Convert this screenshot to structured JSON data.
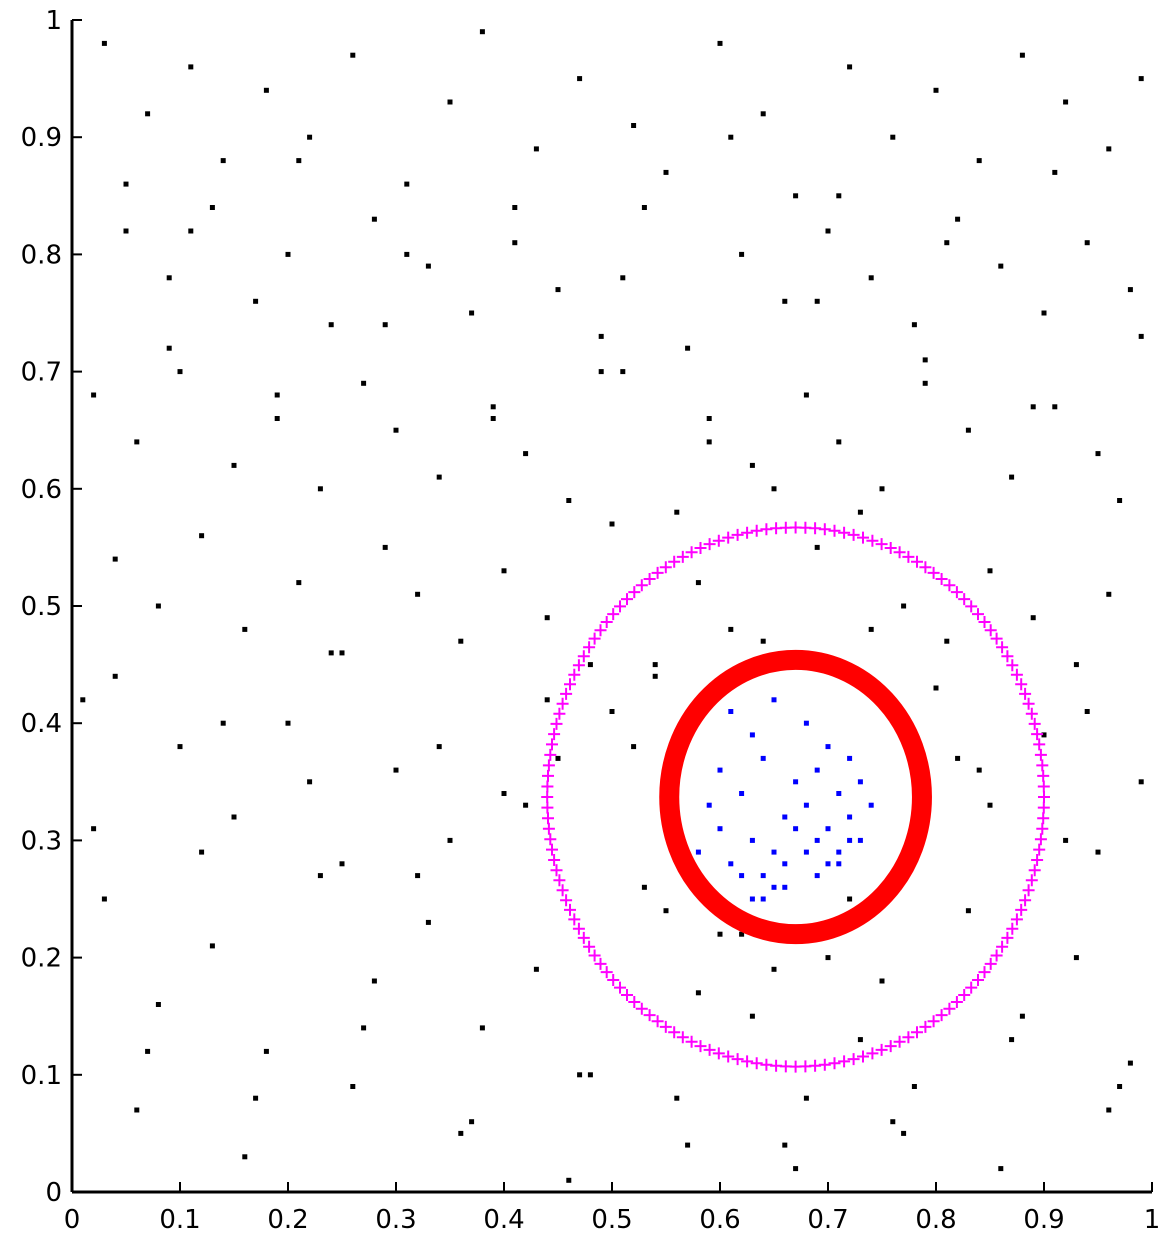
{
  "chart_data": {
    "type": "scatter",
    "title": "",
    "xlabel": "",
    "ylabel": "",
    "xlim": [
      0,
      1
    ],
    "ylim": [
      0,
      1
    ],
    "grid": false,
    "legend": "none",
    "xticks": [
      "0",
      "0.1",
      "0.2",
      "0.3",
      "0.4",
      "0.5",
      "0.6",
      "0.7",
      "0.8",
      "0.9",
      "1"
    ],
    "yticks": [
      "0",
      "0.1",
      "0.2",
      "0.3",
      "0.4",
      "0.5",
      "0.6",
      "0.7",
      "0.8",
      "0.9",
      "1"
    ],
    "colors": {
      "background_points": "#000000",
      "inner_points": "#0000ff",
      "inner_circle": "#ff0000",
      "outer_circle": "#ff00ff",
      "axis": "#000000"
    },
    "series": [
      {
        "marker": "dot",
        "color": "#000000",
        "x": [
          0.03,
          0.07,
          0.11,
          0.14,
          0.18,
          0.22,
          0.26,
          0.31,
          0.35,
          0.38,
          0.43,
          0.47,
          0.52,
          0.55,
          0.6,
          0.64,
          0.67,
          0.72,
          0.76,
          0.8,
          0.84,
          0.88,
          0.92,
          0.96,
          0.99,
          0.05,
          0.09,
          0.13,
          0.17,
          0.2,
          0.24,
          0.28,
          0.33,
          0.37,
          0.41,
          0.45,
          0.49,
          0.53,
          0.57,
          0.62,
          0.66,
          0.7,
          0.74,
          0.78,
          0.82,
          0.86,
          0.9,
          0.94,
          0.98,
          0.02,
          0.06,
          0.1,
          0.15,
          0.19,
          0.23,
          0.27,
          0.3,
          0.34,
          0.39,
          0.42,
          0.46,
          0.51,
          0.56,
          0.59,
          0.63,
          0.68,
          0.71,
          0.75,
          0.79,
          0.83,
          0.87,
          0.91,
          0.95,
          0.97,
          0.04,
          0.08,
          0.12,
          0.16,
          0.21,
          0.25,
          0.29,
          0.32,
          0.36,
          0.4,
          0.44,
          0.48,
          0.5,
          0.54,
          0.58,
          0.61,
          0.65,
          0.69,
          0.73,
          0.77,
          0.81,
          0.85,
          0.89,
          0.93,
          0.96,
          0.01,
          0.1,
          0.2,
          0.3,
          0.4,
          0.5,
          0.6,
          0.7,
          0.8,
          0.9,
          0.99,
          0.15,
          0.25,
          0.35,
          0.45,
          0.55,
          0.65,
          0.75,
          0.85,
          0.95,
          0.03,
          0.13,
          0.23,
          0.33,
          0.43,
          0.53,
          0.63,
          0.73,
          0.83,
          0.93,
          0.08,
          0.18,
          0.28,
          0.38,
          0.48,
          0.58,
          0.68,
          0.78,
          0.88,
          0.98,
          0.06,
          0.16,
          0.26,
          0.36,
          0.46,
          0.56,
          0.66,
          0.76,
          0.86,
          0.96,
          0.02,
          0.12,
          0.22,
          0.32,
          0.42,
          0.52,
          0.62,
          0.72,
          0.82,
          0.92,
          0.07,
          0.17,
          0.27,
          0.37,
          0.47,
          0.57,
          0.67,
          0.77,
          0.87,
          0.97,
          0.04,
          0.14,
          0.24,
          0.34,
          0.44,
          0.54,
          0.64,
          0.74,
          0.84,
          0.94,
          0.09,
          0.19,
          0.29,
          0.39,
          0.49,
          0.59,
          0.69,
          0.79,
          0.89,
          0.99,
          0.05,
          0.11,
          0.21,
          0.31,
          0.41,
          0.51,
          0.61,
          0.71,
          0.81,
          0.91
        ],
        "y": [
          0.98,
          0.92,
          0.96,
          0.88,
          0.94,
          0.9,
          0.97,
          0.86,
          0.93,
          0.99,
          0.89,
          0.95,
          0.91,
          0.87,
          0.98,
          0.92,
          0.85,
          0.96,
          0.9,
          0.94,
          0.88,
          0.97,
          0.93,
          0.89,
          0.95,
          0.82,
          0.78,
          0.84,
          0.76,
          0.8,
          0.74,
          0.83,
          0.79,
          0.75,
          0.81,
          0.77,
          0.73,
          0.84,
          0.72,
          0.8,
          0.76,
          0.82,
          0.78,
          0.74,
          0.83,
          0.79,
          0.75,
          0.81,
          0.77,
          0.68,
          0.64,
          0.7,
          0.62,
          0.66,
          0.6,
          0.69,
          0.65,
          0.61,
          0.67,
          0.63,
          0.59,
          0.7,
          0.58,
          0.66,
          0.62,
          0.68,
          0.64,
          0.6,
          0.69,
          0.65,
          0.61,
          0.67,
          0.63,
          0.59,
          0.54,
          0.5,
          0.56,
          0.48,
          0.52,
          0.46,
          0.55,
          0.51,
          0.47,
          0.53,
          0.49,
          0.45,
          0.57,
          0.44,
          0.52,
          0.48,
          0.6,
          0.55,
          0.58,
          0.5,
          0.47,
          0.53,
          0.49,
          0.45,
          0.51,
          0.42,
          0.38,
          0.4,
          0.36,
          0.34,
          0.41,
          0.22,
          0.2,
          0.43,
          0.39,
          0.35,
          0.32,
          0.28,
          0.3,
          0.37,
          0.24,
          0.19,
          0.18,
          0.33,
          0.29,
          0.25,
          0.21,
          0.27,
          0.23,
          0.19,
          0.26,
          0.15,
          0.13,
          0.24,
          0.2,
          0.16,
          0.12,
          0.18,
          0.14,
          0.1,
          0.17,
          0.08,
          0.09,
          0.15,
          0.11,
          0.07,
          0.03,
          0.09,
          0.05,
          0.01,
          0.08,
          0.04,
          0.06,
          0.02,
          0.07,
          0.31,
          0.29,
          0.35,
          0.27,
          0.33,
          0.38,
          0.22,
          0.25,
          0.37,
          0.3,
          0.12,
          0.08,
          0.14,
          0.06,
          0.1,
          0.04,
          0.02,
          0.05,
          0.13,
          0.09,
          0.44,
          0.4,
          0.46,
          0.38,
          0.42,
          0.45,
          0.47,
          0.48,
          0.36,
          0.41,
          0.72,
          0.68,
          0.74,
          0.66,
          0.7,
          0.64,
          0.76,
          0.71,
          0.67,
          0.73,
          0.86,
          0.82,
          0.88,
          0.8,
          0.84,
          0.78,
          0.9,
          0.85,
          0.81,
          0.87
        ]
      },
      {
        "marker": "dot",
        "color": "#0000ff",
        "x": [
          0.61,
          0.63,
          0.65,
          0.68,
          0.7,
          0.72,
          0.6,
          0.64,
          0.67,
          0.69,
          0.71,
          0.73,
          0.59,
          0.62,
          0.66,
          0.68,
          0.7,
          0.72,
          0.74,
          0.6,
          0.63,
          0.65,
          0.67,
          0.69,
          0.71,
          0.73,
          0.58,
          0.61,
          0.64,
          0.66,
          0.68,
          0.7,
          0.72,
          0.62,
          0.64,
          0.66,
          0.69,
          0.71,
          0.63,
          0.65
        ],
        "y": [
          0.41,
          0.39,
          0.42,
          0.4,
          0.38,
          0.37,
          0.36,
          0.37,
          0.35,
          0.36,
          0.34,
          0.35,
          0.33,
          0.34,
          0.32,
          0.33,
          0.31,
          0.32,
          0.33,
          0.31,
          0.3,
          0.29,
          0.31,
          0.3,
          0.29,
          0.3,
          0.29,
          0.28,
          0.27,
          0.28,
          0.29,
          0.28,
          0.3,
          0.27,
          0.25,
          0.26,
          0.27,
          0.28,
          0.25,
          0.26
        ]
      }
    ],
    "circles": [
      {
        "center": [
          0.67,
          0.337
        ],
        "radius": 0.117,
        "color": "#ff0000",
        "style": "thick"
      },
      {
        "center": [
          0.67,
          0.337
        ],
        "radius": 0.23,
        "color": "#ff00ff",
        "style": "plus-markers"
      }
    ]
  }
}
